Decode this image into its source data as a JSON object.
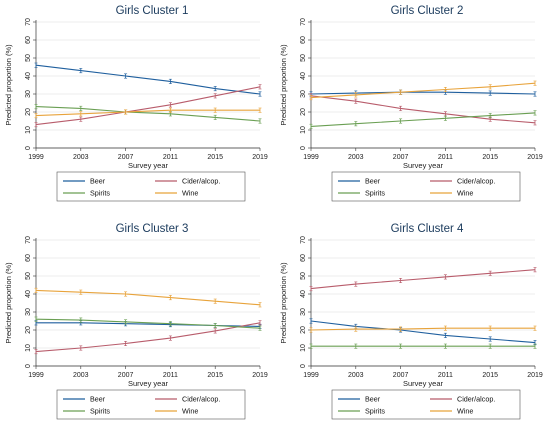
{
  "chart_data": [
    {
      "type": "line",
      "title": "Girls Cluster 1",
      "xlabel": "Survey year",
      "ylabel": "Predicted proportion (%)",
      "x": [
        1999,
        2003,
        2007,
        2011,
        2015,
        2019
      ],
      "ylim": [
        0,
        70
      ],
      "yticks": [
        0,
        10,
        20,
        30,
        40,
        50,
        60,
        70
      ],
      "grid": true,
      "legend_position": "bottom",
      "series": [
        {
          "name": "Beer",
          "values": [
            46,
            43,
            40,
            37,
            33,
            30
          ]
        },
        {
          "name": "Cider/alcop.",
          "values": [
            13,
            16,
            20,
            24,
            29,
            34
          ]
        },
        {
          "name": "Spirits",
          "values": [
            23,
            22,
            20,
            19,
            17,
            15
          ]
        },
        {
          "name": "Wine",
          "values": [
            18,
            19,
            20,
            21,
            21,
            21
          ]
        }
      ]
    },
    {
      "type": "line",
      "title": "Girls Cluster 2",
      "xlabel": "Survey year",
      "ylabel": "Predicted proportion (%)",
      "x": [
        1999,
        2003,
        2007,
        2011,
        2015,
        2019
      ],
      "ylim": [
        0,
        70
      ],
      "yticks": [
        0,
        10,
        20,
        30,
        40,
        50,
        60,
        70
      ],
      "grid": true,
      "legend_position": "bottom",
      "series": [
        {
          "name": "Beer",
          "values": [
            30,
            30.5,
            31,
            31,
            30.5,
            30
          ]
        },
        {
          "name": "Cider/alcop.",
          "values": [
            29,
            26,
            22,
            19,
            16,
            14
          ]
        },
        {
          "name": "Spirits",
          "values": [
            12,
            13.5,
            15,
            16.5,
            18,
            19.5
          ]
        },
        {
          "name": "Wine",
          "values": [
            28,
            29.5,
            31,
            32.5,
            34,
            36
          ]
        }
      ]
    },
    {
      "type": "line",
      "title": "Girls Cluster 3",
      "xlabel": "Survey year",
      "ylabel": "Predicted proportion (%)",
      "x": [
        1999,
        2003,
        2007,
        2011,
        2015,
        2019
      ],
      "ylim": [
        0,
        70
      ],
      "yticks": [
        0,
        10,
        20,
        30,
        40,
        50,
        60,
        70
      ],
      "grid": true,
      "legend_position": "bottom",
      "series": [
        {
          "name": "Beer",
          "values": [
            24,
            24,
            23.5,
            23,
            22.5,
            22
          ]
        },
        {
          "name": "Cider/alcop.",
          "values": [
            8,
            10,
            12.5,
            15.5,
            19.5,
            24
          ]
        },
        {
          "name": "Spirits",
          "values": [
            26,
            25.5,
            24.5,
            23.5,
            22.5,
            21
          ]
        },
        {
          "name": "Wine",
          "values": [
            42,
            41,
            40,
            38,
            36,
            34
          ]
        }
      ]
    },
    {
      "type": "line",
      "title": "Girls Cluster 4",
      "xlabel": "Survey year",
      "ylabel": "Predicted proportion (%)",
      "x": [
        1999,
        2003,
        2007,
        2011,
        2015,
        2019
      ],
      "ylim": [
        0,
        70
      ],
      "yticks": [
        0,
        10,
        20,
        30,
        40,
        50,
        60,
        70
      ],
      "grid": true,
      "legend_position": "bottom",
      "series": [
        {
          "name": "Beer",
          "values": [
            25,
            22,
            20,
            17,
            15,
            13
          ]
        },
        {
          "name": "Cider/alcop.",
          "values": [
            43,
            45.5,
            47.5,
            49.5,
            51.5,
            53.5
          ]
        },
        {
          "name": "Spirits",
          "values": [
            11,
            11,
            11,
            11,
            11,
            11
          ]
        },
        {
          "name": "Wine",
          "values": [
            20,
            20.5,
            20.5,
            21,
            21,
            21
          ]
        }
      ]
    }
  ],
  "colors": {
    "Beer": "#1f5f9e",
    "Cider/alcop.": "#b85c6b",
    "Spirits": "#6a9f53",
    "Wine": "#e8a33b",
    "title": "#1a3a5c",
    "grid": "#e6e6e6",
    "axis": "#333333"
  }
}
